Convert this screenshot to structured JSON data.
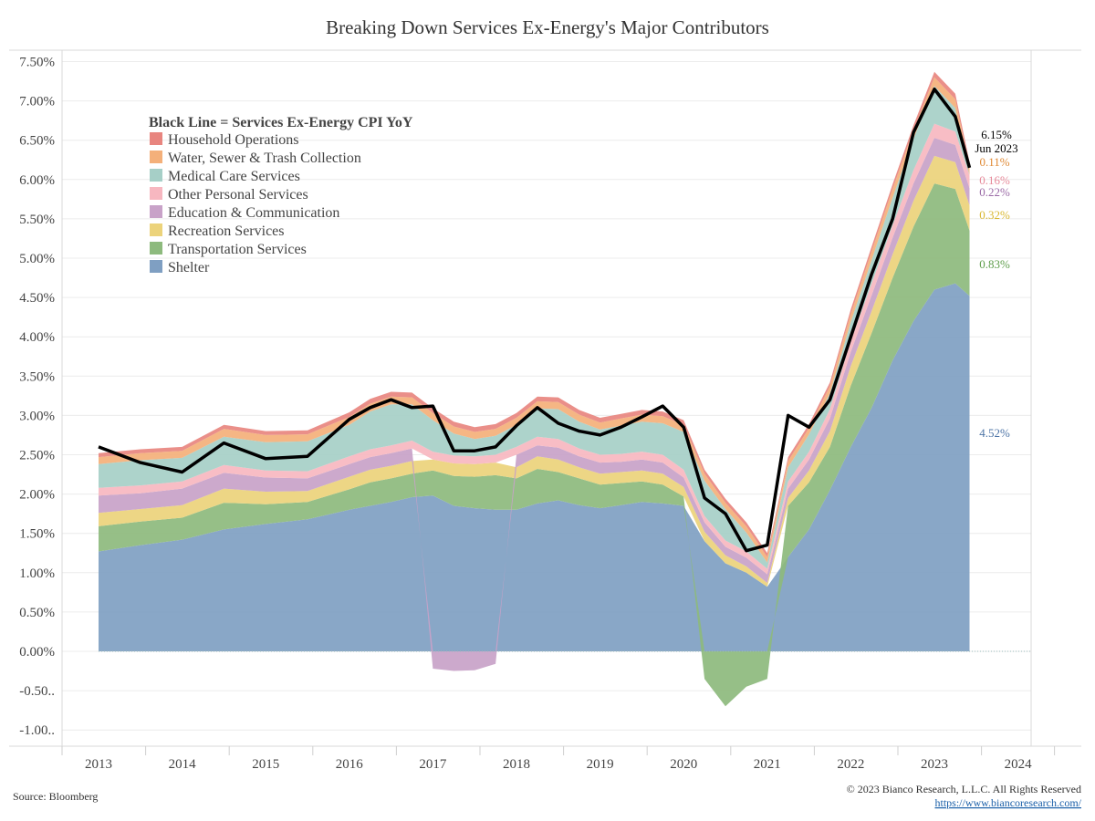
{
  "chart_data": {
    "type": "area",
    "title": "Breaking Down Services Ex-Energy's Major Contributors",
    "xlabel": "",
    "ylabel": "",
    "x_ticks": [
      "2013",
      "2014",
      "2015",
      "2016",
      "2017",
      "2018",
      "2019",
      "2020",
      "2021",
      "2022",
      "2023",
      "2024"
    ],
    "y_ticks": [
      "7.50%",
      "7.00%",
      "6.50%",
      "6.00%",
      "5.50%",
      "5.00%",
      "4.50%",
      "4.00%",
      "3.50%",
      "3.00%",
      "2.50%",
      "2.00%",
      "1.50%",
      "1.00%",
      "0.50%",
      "0.00%",
      "-0.50..",
      "-1.00.."
    ],
    "ylim": [
      -1.1,
      7.75
    ],
    "xlim": [
      2012.5,
      2024.3
    ],
    "legend_title": "Black Line = Services Ex-Energy CPI YoY",
    "legend_position": "top-left",
    "grid": true,
    "x": [
      2013.0,
      2013.5,
      2014.0,
      2014.5,
      2015.0,
      2015.5,
      2016.0,
      2016.25,
      2016.5,
      2016.75,
      2017.0,
      2017.25,
      2017.5,
      2017.75,
      2018.0,
      2018.25,
      2018.5,
      2018.75,
      2019.0,
      2019.25,
      2019.5,
      2019.75,
      2020.0,
      2020.25,
      2020.5,
      2020.75,
      2021.0,
      2021.25,
      2021.5,
      2021.75,
      2022.0,
      2022.25,
      2022.5,
      2022.75,
      2023.0,
      2023.25,
      2023.42
    ],
    "series": [
      {
        "name": "Shelter",
        "color": "#7f9fc2",
        "label": "4.52%",
        "values": [
          1.27,
          1.35,
          1.42,
          1.55,
          1.62,
          1.68,
          1.8,
          1.85,
          1.9,
          1.96,
          1.98,
          1.85,
          1.82,
          1.8,
          1.8,
          1.88,
          1.92,
          1.86,
          1.82,
          1.86,
          1.9,
          1.88,
          1.85,
          1.4,
          1.12,
          1.0,
          0.82,
          1.2,
          1.55,
          2.05,
          2.6,
          3.1,
          3.7,
          4.2,
          4.6,
          4.68,
          4.52
        ]
      },
      {
        "name": "Transportation Services",
        "color": "#8dba7d",
        "label": "0.83%",
        "values": [
          0.32,
          0.3,
          0.28,
          0.34,
          0.25,
          0.22,
          0.26,
          0.3,
          0.3,
          0.3,
          0.32,
          0.38,
          0.4,
          0.44,
          0.4,
          0.44,
          0.36,
          0.34,
          0.3,
          0.28,
          0.26,
          0.24,
          0.12,
          -0.35,
          -0.7,
          -0.45,
          -0.35,
          0.65,
          0.6,
          0.55,
          0.78,
          0.95,
          1.05,
          1.2,
          1.35,
          1.2,
          0.83
        ]
      },
      {
        "name": "Recreation Services",
        "color": "#ecd37b",
        "label": "0.32%",
        "values": [
          0.17,
          0.16,
          0.16,
          0.18,
          0.16,
          0.14,
          0.16,
          0.16,
          0.16,
          0.16,
          0.14,
          0.16,
          0.16,
          0.16,
          0.14,
          0.16,
          0.16,
          0.14,
          0.14,
          0.14,
          0.14,
          0.14,
          0.12,
          0.12,
          0.1,
          0.08,
          0.05,
          0.1,
          0.15,
          0.2,
          0.25,
          0.28,
          0.3,
          0.33,
          0.35,
          0.34,
          0.32
        ]
      },
      {
        "name": "Education & Communication",
        "color": "#c8a2c8",
        "label": "0.22%",
        "values": [
          0.22,
          0.2,
          0.21,
          0.2,
          0.18,
          0.16,
          0.16,
          0.16,
          0.16,
          0.16,
          -0.22,
          -0.25,
          -0.24,
          -0.16,
          0.16,
          0.14,
          0.15,
          0.14,
          0.14,
          0.13,
          0.14,
          0.14,
          0.12,
          0.12,
          0.11,
          0.11,
          0.11,
          0.12,
          0.14,
          0.16,
          0.18,
          0.2,
          0.21,
          0.22,
          0.23,
          0.22,
          0.22
        ]
      },
      {
        "name": "Other Personal Services",
        "color": "#f7b7c0",
        "label": "0.16%",
        "values": [
          0.1,
          0.1,
          0.09,
          0.1,
          0.09,
          0.09,
          0.1,
          0.1,
          0.1,
          0.1,
          0.1,
          0.1,
          0.1,
          0.1,
          0.1,
          0.11,
          0.11,
          0.1,
          0.1,
          0.1,
          0.1,
          0.1,
          0.1,
          0.08,
          0.08,
          0.08,
          0.07,
          0.09,
          0.1,
          0.12,
          0.14,
          0.15,
          0.16,
          0.17,
          0.18,
          0.17,
          0.16
        ]
      },
      {
        "name": "Medical Care Services",
        "color": "#a6cfc7",
        "label": "",
        "values": [
          0.3,
          0.32,
          0.3,
          0.36,
          0.36,
          0.38,
          0.4,
          0.48,
          0.52,
          0.46,
          0.4,
          0.28,
          0.22,
          0.24,
          0.28,
          0.36,
          0.38,
          0.34,
          0.32,
          0.36,
          0.38,
          0.4,
          0.48,
          0.45,
          0.4,
          0.24,
          0.08,
          0.18,
          0.22,
          0.2,
          0.24,
          0.3,
          0.35,
          0.4,
          0.48,
          0.3,
          0.0
        ]
      },
      {
        "name": "Water, Sewer & Trash Collection",
        "color": "#f4b07a",
        "label": "0.11%",
        "values": [
          0.09,
          0.09,
          0.09,
          0.1,
          0.09,
          0.09,
          0.1,
          0.1,
          0.1,
          0.09,
          0.09,
          0.09,
          0.09,
          0.09,
          0.09,
          0.09,
          0.09,
          0.09,
          0.09,
          0.09,
          0.09,
          0.09,
          0.09,
          0.09,
          0.08,
          0.08,
          0.07,
          0.08,
          0.08,
          0.09,
          0.1,
          0.11,
          0.11,
          0.11,
          0.11,
          0.11,
          0.11
        ]
      },
      {
        "name": "Household Operations",
        "color": "#e8857f",
        "label": "",
        "values": [
          0.05,
          0.05,
          0.05,
          0.05,
          0.05,
          0.05,
          0.06,
          0.06,
          0.06,
          0.06,
          0.06,
          0.06,
          0.06,
          0.06,
          0.06,
          0.06,
          0.06,
          0.06,
          0.06,
          0.06,
          0.06,
          0.06,
          0.06,
          0.05,
          0.05,
          0.05,
          0.05,
          0.05,
          0.05,
          0.05,
          0.06,
          0.06,
          0.06,
          0.06,
          0.07,
          0.07,
          0.06
        ]
      }
    ],
    "line": {
      "name": "Services Ex-Energy CPI YoY",
      "color": "#000000",
      "values": [
        2.6,
        2.4,
        2.28,
        2.65,
        2.45,
        2.48,
        2.95,
        3.1,
        3.2,
        3.1,
        3.12,
        2.55,
        2.55,
        2.6,
        2.87,
        3.1,
        2.9,
        2.8,
        2.75,
        2.85,
        2.98,
        3.12,
        2.85,
        1.95,
        1.75,
        1.28,
        1.35,
        3.0,
        2.85,
        3.2,
        4.0,
        4.8,
        5.5,
        6.6,
        7.15,
        6.8,
        6.15
      ],
      "end_value": "6.15%",
      "end_date": "Jun 2023"
    }
  },
  "footer": {
    "source": "Source: Bloomberg",
    "copyright": "© 2023 Bianco Research, L.L.C. All Rights Reserved",
    "url": "https://www.biancoresearch.com/"
  }
}
